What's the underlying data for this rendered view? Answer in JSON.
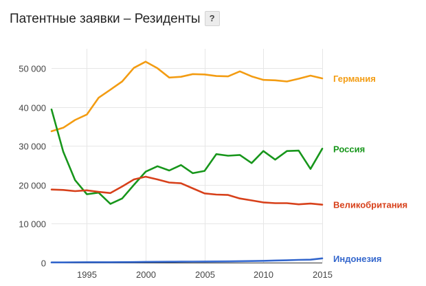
{
  "header": {
    "title": "Патентные заявки – Резиденты",
    "help_label": "?"
  },
  "chart_data": {
    "type": "line",
    "title": "Патентные заявки – Резиденты",
    "xlabel": "",
    "ylabel": "",
    "xlim": [
      1992,
      2015
    ],
    "ylim": [
      0,
      55000
    ],
    "grid": true,
    "legend": "inline-right",
    "x_ticks": [
      1995,
      2000,
      2005,
      2010,
      2015
    ],
    "x_tick_labels": [
      "1995",
      "2000",
      "2005",
      "2010",
      "2015"
    ],
    "y_ticks": [
      0,
      10000,
      20000,
      30000,
      40000,
      50000
    ],
    "y_tick_labels": [
      "0",
      "10 000",
      "20 000",
      "30 000",
      "40 000",
      "50 000"
    ],
    "x": [
      1992,
      1993,
      1994,
      1995,
      1996,
      1997,
      1998,
      1999,
      2000,
      2001,
      2002,
      2003,
      2004,
      2005,
      2006,
      2007,
      2008,
      2009,
      2010,
      2011,
      2012,
      2013,
      2014,
      2015
    ],
    "series": [
      {
        "name": "Германия",
        "color": "#f39c12",
        "values": [
          33800,
          34700,
          36700,
          38100,
          42400,
          44500,
          46600,
          50100,
          51700,
          50000,
          47600,
          47800,
          48500,
          48400,
          48000,
          47900,
          49200,
          47900,
          47000,
          46900,
          46600,
          47300,
          48100,
          47400
        ]
      },
      {
        "name": "Россия",
        "color": "#17961b",
        "values": [
          39400,
          28500,
          21200,
          17600,
          18000,
          15100,
          16500,
          20000,
          23400,
          24800,
          23700,
          25100,
          23000,
          23600,
          27900,
          27500,
          27700,
          25600,
          28700,
          26500,
          28700,
          28800,
          24100,
          29300
        ]
      },
      {
        "name": "Великобритания",
        "color": "#d7401a",
        "values": [
          18800,
          18700,
          18400,
          18600,
          18200,
          17900,
          19600,
          21400,
          22100,
          21400,
          20600,
          20400,
          19100,
          17800,
          17500,
          17400,
          16500,
          16000,
          15500,
          15300,
          15300,
          15000,
          15200,
          14900
        ]
      },
      {
        "name": "Индонезия",
        "color": "#3366cc",
        "values": [
          50,
          60,
          80,
          100,
          100,
          110,
          130,
          150,
          200,
          220,
          230,
          240,
          260,
          280,
          300,
          320,
          370,
          410,
          460,
          540,
          600,
          700,
          760,
          1100
        ]
      }
    ]
  }
}
